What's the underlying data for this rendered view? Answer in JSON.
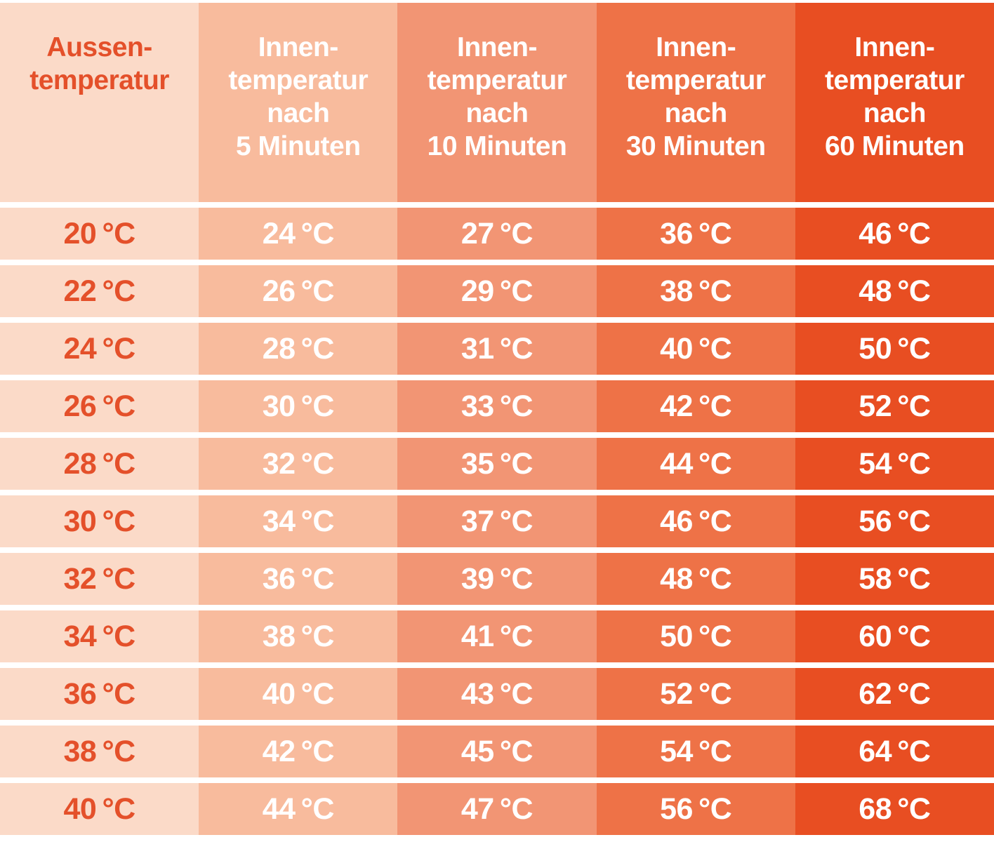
{
  "colors": {
    "separator": "#ffffff",
    "col_aussen_bg": "#fbdac8",
    "col_5min_bg": "#f8bb9d",
    "col_10min_bg": "#f29574",
    "col_30min_bg": "#ee7247",
    "col_60min_bg": "#e84e22",
    "aussen_text": "#e4502a",
    "innen_text": "#ffffff"
  },
  "table": {
    "header": [
      {
        "lines": [
          "Aussen-",
          "temperatur"
        ]
      },
      {
        "lines": [
          "Innen-",
          "temperatur",
          "nach",
          "5 Minuten"
        ]
      },
      {
        "lines": [
          "Innen-",
          "temperatur",
          "nach",
          "10 Minuten"
        ]
      },
      {
        "lines": [
          "Innen-",
          "temperatur",
          "nach",
          "30 Minuten"
        ]
      },
      {
        "lines": [
          "Innen-",
          "temperatur",
          "nach",
          "60 Minuten"
        ]
      }
    ],
    "rows": [
      {
        "cells": [
          "20 °C",
          "24 °C",
          "27 °C",
          "36 °C",
          "46 °C"
        ]
      },
      {
        "cells": [
          "22 °C",
          "26 °C",
          "29 °C",
          "38 °C",
          "48 °C"
        ]
      },
      {
        "cells": [
          "24 °C",
          "28 °C",
          "31 °C",
          "40 °C",
          "50 °C"
        ]
      },
      {
        "cells": [
          "26 °C",
          "30 °C",
          "33 °C",
          "42 °C",
          "52 °C"
        ]
      },
      {
        "cells": [
          "28 °C",
          "32 °C",
          "35 °C",
          "44 °C",
          "54 °C"
        ]
      },
      {
        "cells": [
          "30 °C",
          "34 °C",
          "37 °C",
          "46 °C",
          "56 °C"
        ]
      },
      {
        "cells": [
          "32 °C",
          "36 °C",
          "39 °C",
          "48 °C",
          "58 °C"
        ]
      },
      {
        "cells": [
          "34 °C",
          "38 °C",
          "41 °C",
          "50 °C",
          "60 °C"
        ]
      },
      {
        "cells": [
          "36 °C",
          "40 °C",
          "43 °C",
          "52 °C",
          "62 °C"
        ]
      },
      {
        "cells": [
          "38 °C",
          "42 °C",
          "45 °C",
          "54 °C",
          "64 °C"
        ]
      },
      {
        "cells": [
          "40 °C",
          "44 °C",
          "47 °C",
          "56 °C",
          "68 °C"
        ]
      }
    ]
  },
  "chart_data": {
    "type": "table",
    "title": "",
    "unit": "°C",
    "columns": [
      "Aussentemperatur",
      "Innentemperatur nach 5 Minuten",
      "Innentemperatur nach 10 Minuten",
      "Innentemperatur nach 30 Minuten",
      "Innentemperatur nach 60 Minuten"
    ],
    "rows": [
      [
        20,
        24,
        27,
        36,
        46
      ],
      [
        22,
        26,
        29,
        38,
        48
      ],
      [
        24,
        28,
        31,
        40,
        50
      ],
      [
        26,
        30,
        33,
        42,
        52
      ],
      [
        28,
        32,
        35,
        44,
        54
      ],
      [
        30,
        34,
        37,
        46,
        56
      ],
      [
        32,
        36,
        39,
        48,
        58
      ],
      [
        34,
        38,
        41,
        50,
        60
      ],
      [
        36,
        40,
        43,
        52,
        62
      ],
      [
        38,
        42,
        45,
        54,
        64
      ],
      [
        40,
        44,
        47,
        56,
        68
      ]
    ]
  }
}
